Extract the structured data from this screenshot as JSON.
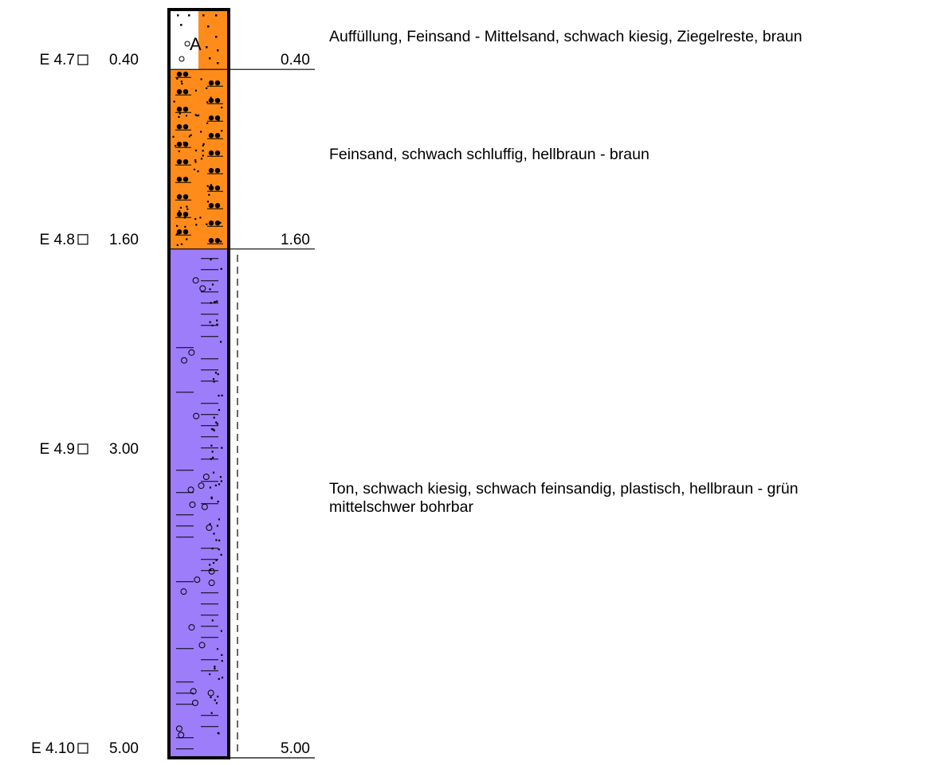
{
  "samples": [
    {
      "id": "E 4.7",
      "depth": "0.40"
    },
    {
      "id": "E 4.8",
      "depth": "1.60"
    },
    {
      "id": "E 4.9",
      "depth": "3.00"
    },
    {
      "id": "E 4.10",
      "depth": "5.00"
    }
  ],
  "boundaries": [
    "0.40",
    "1.60",
    "5.00"
  ],
  "layers": [
    {
      "top": 0.0,
      "bottom": 0.4,
      "color": "#ffffff",
      "color_right": "#ff8c1a",
      "symbol": "A",
      "description": [
        "Auffüllung, Feinsand - Mittelsand, schwach kiesig, Ziegelreste, braun"
      ]
    },
    {
      "top": 0.4,
      "bottom": 1.6,
      "color": "#ff8c1a",
      "description": [
        "Feinsand, schwach schluffig, hellbraun - braun"
      ]
    },
    {
      "top": 1.6,
      "bottom": 5.0,
      "color": "#9d7dfa",
      "description": [
        "Ton, schwach kiesig, schwach feinsandig, plastisch, hellbraun - grün",
        "mittelschwer bohrbar"
      ]
    }
  ],
  "sample_marker_icon": "square-icon"
}
